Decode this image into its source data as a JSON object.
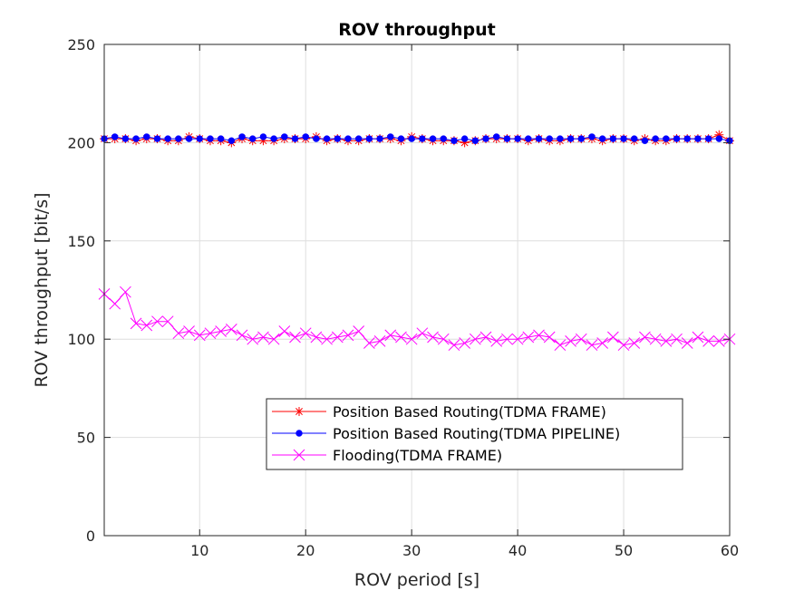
{
  "chart_data": {
    "type": "line",
    "title": "ROV throughput",
    "xlabel": "ROV period [s]",
    "ylabel": "ROV throughput [bit/s]",
    "xlim": [
      1,
      60
    ],
    "ylim": [
      0,
      250
    ],
    "xticks": [
      10,
      20,
      30,
      40,
      50,
      60
    ],
    "yticks": [
      0,
      50,
      100,
      150,
      200,
      250
    ],
    "grid": true,
    "legend_position": "lower-center",
    "x": [
      1,
      2,
      3,
      4,
      5,
      6,
      7,
      8,
      9,
      10,
      11,
      12,
      13,
      14,
      15,
      16,
      17,
      18,
      19,
      20,
      21,
      22,
      23,
      24,
      25,
      26,
      27,
      28,
      29,
      30,
      31,
      32,
      33,
      34,
      35,
      36,
      37,
      38,
      39,
      40,
      41,
      42,
      43,
      44,
      45,
      46,
      47,
      48,
      49,
      50,
      51,
      52,
      53,
      54,
      55,
      56,
      57,
      58,
      59,
      60
    ],
    "series": [
      {
        "name": "Position Based Routing(TDMA FRAME)",
        "color": "#ff0000",
        "marker": "star",
        "values": [
          202,
          202,
          202,
          201,
          202,
          202,
          201,
          201,
          203,
          202,
          201,
          201,
          200,
          202,
          201,
          201,
          201,
          202,
          202,
          202,
          203,
          201,
          202,
          201,
          201,
          202,
          202,
          202,
          201,
          203,
          202,
          201,
          201,
          201,
          200,
          201,
          202,
          202,
          202,
          202,
          201,
          202,
          201,
          201,
          202,
          202,
          202,
          201,
          202,
          202,
          201,
          202,
          201,
          201,
          202,
          202,
          202,
          202,
          204,
          201
        ]
      },
      {
        "name": "Position Based Routing(TDMA PIPELINE)",
        "color": "#0000ff",
        "marker": "dot",
        "values": [
          202,
          203,
          202,
          202,
          203,
          202,
          202,
          202,
          202,
          202,
          202,
          202,
          201,
          203,
          202,
          203,
          202,
          203,
          202,
          203,
          202,
          202,
          202,
          202,
          202,
          202,
          202,
          203,
          202,
          202,
          202,
          202,
          202,
          201,
          202,
          201,
          202,
          203,
          202,
          202,
          202,
          202,
          202,
          202,
          202,
          202,
          203,
          202,
          202,
          202,
          202,
          201,
          202,
          202,
          202,
          202,
          202,
          202,
          202,
          201
        ]
      },
      {
        "name": "Flooding(TDMA FRAME)",
        "color": "#ff00ff",
        "marker": "x",
        "values": [
          123,
          118,
          124,
          108,
          107,
          109,
          109,
          103,
          104,
          102,
          103,
          104,
          105,
          102,
          100,
          101,
          100,
          104,
          101,
          103,
          101,
          100,
          101,
          102,
          104,
          98,
          99,
          102,
          101,
          100,
          103,
          101,
          100,
          97,
          98,
          100,
          101,
          99,
          100,
          100,
          101,
          102,
          101,
          97,
          99,
          100,
          97,
          98,
          101,
          97,
          98,
          101,
          100,
          99,
          100,
          98,
          101,
          99,
          99,
          100
        ]
      }
    ]
  }
}
